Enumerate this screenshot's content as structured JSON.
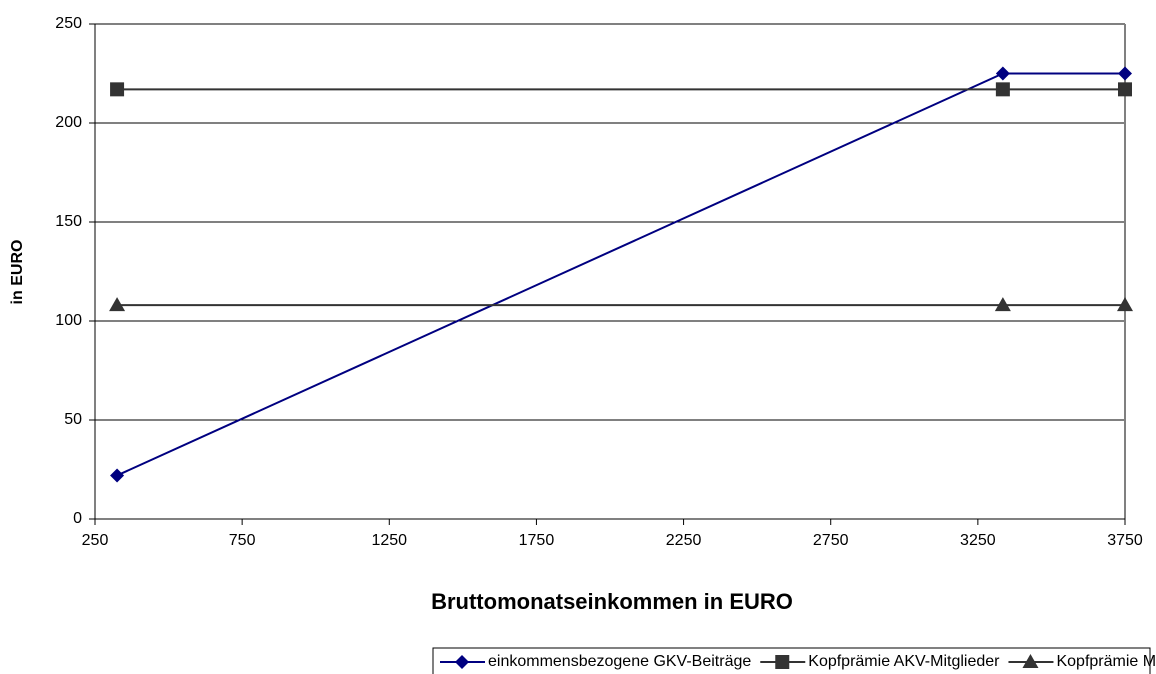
{
  "chart_data": {
    "type": "line",
    "x_label": "Bruttomonatseinkommen in EURO",
    "y_label": "in EURO",
    "x": [
      325,
      3335,
      3750
    ],
    "series": [
      {
        "name": "einkommensbezogene GKV-Beiträge",
        "color": "#000080",
        "marker": "diamond",
        "values": [
          22,
          225,
          225
        ]
      },
      {
        "name": "Kopfprämie AKV-Mitglieder",
        "color": "#333333",
        "marker": "square",
        "values": [
          217,
          217,
          217
        ]
      },
      {
        "name": "Kopfprämie Mitversicherte und Rentner",
        "color": "#333333",
        "marker": "triangle",
        "values": [
          108,
          108,
          108
        ]
      }
    ],
    "xlim": [
      250,
      3750
    ],
    "xticks": [
      250,
      750,
      1250,
      1750,
      2250,
      2750,
      3250,
      3750
    ],
    "ylim": [
      0,
      250
    ],
    "yticks": [
      0,
      50,
      100,
      150,
      200,
      250
    ],
    "grid": true,
    "legend": "bottom"
  }
}
